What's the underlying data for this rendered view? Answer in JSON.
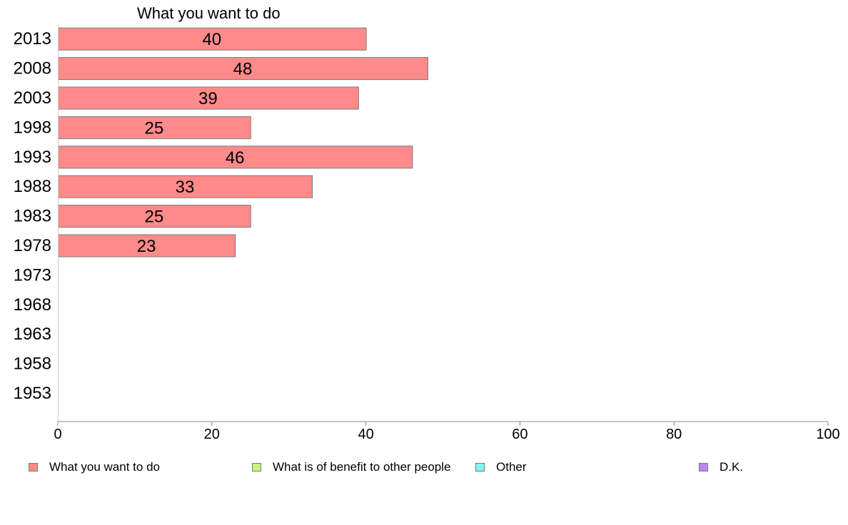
{
  "chart_data": {
    "type": "bar",
    "orientation": "horizontal",
    "title": "What you want to do",
    "xlabel": "",
    "ylabel": "",
    "xlim": [
      0,
      100
    ],
    "x_ticks": [
      0,
      20,
      40,
      60,
      80,
      100
    ],
    "grid": false,
    "legend_position": "bottom",
    "categories": [
      "2013",
      "2008",
      "2003",
      "1998",
      "1993",
      "1988",
      "1983",
      "1978",
      "1973",
      "1968",
      "1963",
      "1958",
      "1953"
    ],
    "series": [
      {
        "name": "What you want to do",
        "color": "#ff8a8a",
        "values": [
          40,
          48,
          39,
          25,
          46,
          33,
          25,
          23,
          null,
          null,
          null,
          null,
          null
        ]
      }
    ],
    "legend": [
      {
        "label": "What you want to do",
        "color": "#ff8a8a"
      },
      {
        "label": "What is of benefit to other people",
        "color": "#c4f57e"
      },
      {
        "label": "Other",
        "color": "#7ff8f0"
      },
      {
        "label": "D.K.",
        "color": "#bb88f5"
      }
    ]
  }
}
